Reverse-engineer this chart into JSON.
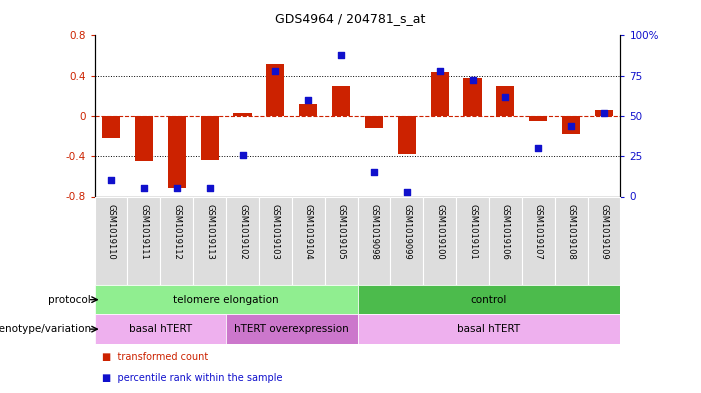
{
  "title": "GDS4964 / 204781_s_at",
  "samples": [
    "GSM1019110",
    "GSM1019111",
    "GSM1019112",
    "GSM1019113",
    "GSM1019102",
    "GSM1019103",
    "GSM1019104",
    "GSM1019105",
    "GSM1019098",
    "GSM1019099",
    "GSM1019100",
    "GSM1019101",
    "GSM1019106",
    "GSM1019107",
    "GSM1019108",
    "GSM1019109"
  ],
  "bar_values": [
    -0.22,
    -0.45,
    -0.72,
    -0.44,
    0.03,
    0.52,
    0.12,
    0.3,
    -0.12,
    -0.38,
    0.44,
    0.38,
    0.3,
    -0.05,
    -0.18,
    0.06
  ],
  "dot_values": [
    10,
    5,
    5,
    5,
    26,
    78,
    60,
    88,
    15,
    3,
    78,
    72,
    62,
    30,
    44,
    52
  ],
  "protocol_groups": [
    {
      "label": "telomere elongation",
      "start": 0,
      "end": 8,
      "color": "#90EE90"
    },
    {
      "label": "control",
      "start": 8,
      "end": 16,
      "color": "#4CBB4C"
    }
  ],
  "genotype_groups": [
    {
      "label": "basal hTERT",
      "start": 0,
      "end": 4,
      "color": "#EEB0EE"
    },
    {
      "label": "hTERT overexpression",
      "start": 4,
      "end": 8,
      "color": "#CC77CC"
    },
    {
      "label": "basal hTERT",
      "start": 8,
      "end": 16,
      "color": "#EEB0EE"
    }
  ],
  "bar_color": "#CC2200",
  "dot_color": "#1010CC",
  "ylim_left": [
    -0.8,
    0.8
  ],
  "ylim_right": [
    0,
    100
  ],
  "yticks_left": [
    -0.8,
    -0.4,
    0.0,
    0.4,
    0.8
  ],
  "ytick_labels_left": [
    "-0.8",
    "-0.4",
    "0",
    "0.4",
    "0.8"
  ],
  "yticks_right": [
    0,
    25,
    50,
    75,
    100
  ],
  "ytick_labels_right": [
    "0",
    "25",
    "50",
    "75",
    "100%"
  ],
  "hline_y": 0.0,
  "dotted_hlines": [
    -0.4,
    0.4
  ],
  "cell_bg": "#DDDDDD",
  "cell_border": "#BBBBBB"
}
